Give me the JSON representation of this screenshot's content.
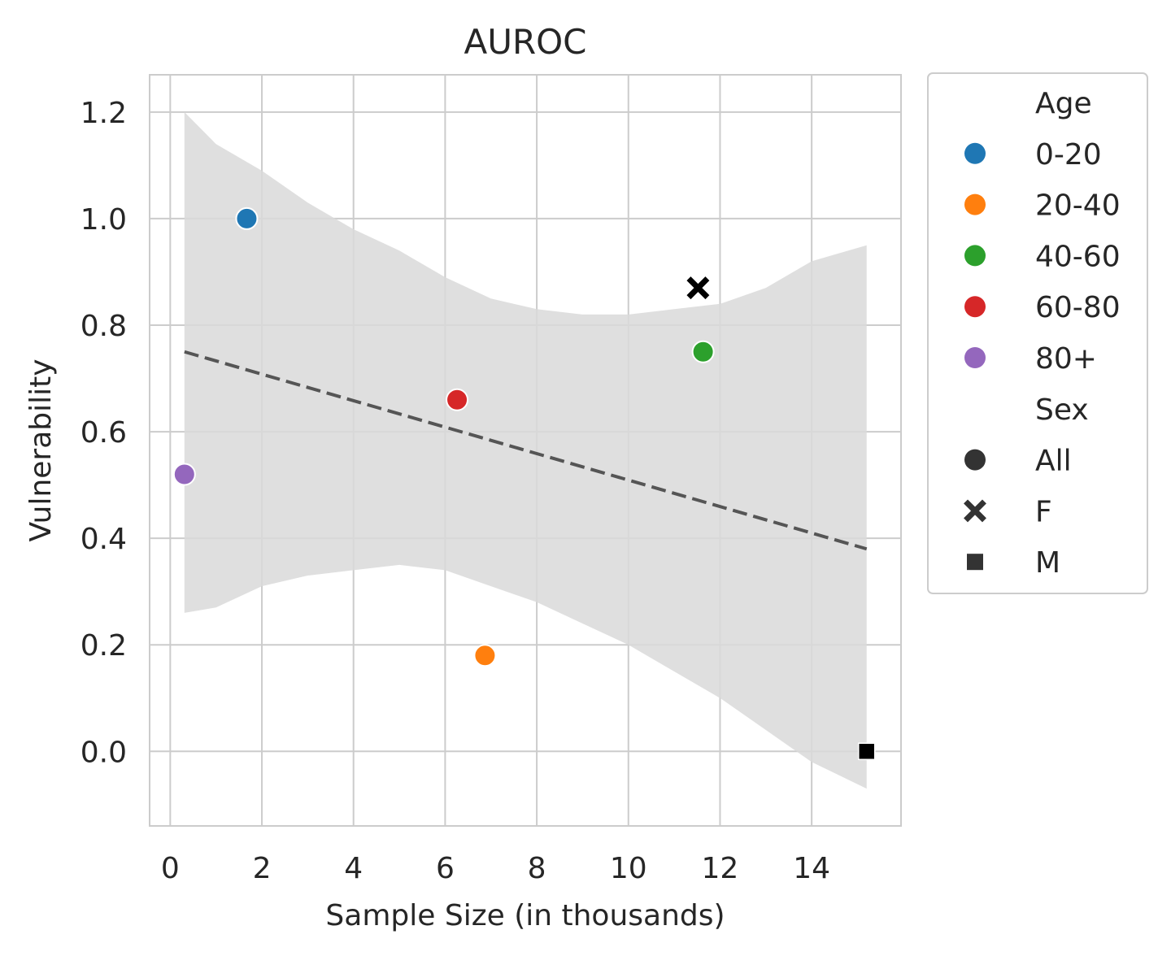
{
  "chart_data": {
    "type": "scatter",
    "title": "AUROC",
    "xlabel": "Sample Size (in thousands)",
    "ylabel": "Vulnerability",
    "xlim": [
      -0.45,
      15.95
    ],
    "ylim": [
      -0.14,
      1.27
    ],
    "x_ticks": [
      0,
      2,
      4,
      6,
      8,
      10,
      12,
      14
    ],
    "y_ticks": [
      0.0,
      0.2,
      0.4,
      0.6,
      0.8,
      1.0,
      1.2
    ],
    "x_tick_labels": [
      "0",
      "2",
      "4",
      "6",
      "8",
      "10",
      "12",
      "14"
    ],
    "y_tick_labels": [
      "0.0",
      "0.2",
      "0.4",
      "0.6",
      "0.8",
      "1.0",
      "1.2"
    ],
    "grid": true,
    "legend_placement": "outside right",
    "points": [
      {
        "x": 1.67,
        "y": 1.0,
        "age": "0-20",
        "sex": "All"
      },
      {
        "x": 6.87,
        "y": 0.18,
        "age": "20-40",
        "sex": "All"
      },
      {
        "x": 11.63,
        "y": 0.75,
        "age": "40-60",
        "sex": "All"
      },
      {
        "x": 6.26,
        "y": 0.66,
        "age": "60-80",
        "sex": "All"
      },
      {
        "x": 0.31,
        "y": 0.52,
        "age": "80+",
        "sex": "All"
      },
      {
        "x": 11.52,
        "y": 0.87,
        "age": null,
        "sex": "F"
      },
      {
        "x": 15.2,
        "y": 0.0,
        "age": null,
        "sex": "M"
      }
    ],
    "regression_line": {
      "x": [
        0.31,
        15.2
      ],
      "y": [
        0.75,
        0.38
      ],
      "style": "dashed",
      "color": "#555555"
    },
    "confidence_band": {
      "color": "#d9d9d9",
      "x": [
        0.31,
        1.0,
        2.0,
        3.0,
        4.0,
        5.0,
        6.0,
        7.0,
        8.0,
        9.0,
        10.0,
        11.0,
        12.0,
        13.0,
        14.0,
        15.2
      ],
      "upper": [
        1.2,
        1.14,
        1.09,
        1.03,
        0.98,
        0.94,
        0.89,
        0.85,
        0.83,
        0.82,
        0.82,
        0.83,
        0.84,
        0.87,
        0.92,
        0.95
      ],
      "lower": [
        0.26,
        0.27,
        0.31,
        0.33,
        0.34,
        0.35,
        0.34,
        0.31,
        0.28,
        0.24,
        0.2,
        0.15,
        0.1,
        0.04,
        -0.02,
        -0.07
      ]
    },
    "legend": {
      "sections": [
        {
          "title": "Age",
          "items": [
            {
              "label": "0-20",
              "color": "#1f77b4",
              "marker": "circle"
            },
            {
              "label": "20-40",
              "color": "#ff7f0e",
              "marker": "circle"
            },
            {
              "label": "40-60",
              "color": "#2ca02c",
              "marker": "circle"
            },
            {
              "label": "60-80",
              "color": "#d62728",
              "marker": "circle"
            },
            {
              "label": "80+",
              "color": "#9467bd",
              "marker": "circle"
            }
          ]
        },
        {
          "title": "Sex",
          "items": [
            {
              "label": "All",
              "color": "#333333",
              "marker": "circle"
            },
            {
              "label": "F",
              "color": "#333333",
              "marker": "x"
            },
            {
              "label": "M",
              "color": "#333333",
              "marker": "square"
            }
          ]
        }
      ]
    }
  }
}
